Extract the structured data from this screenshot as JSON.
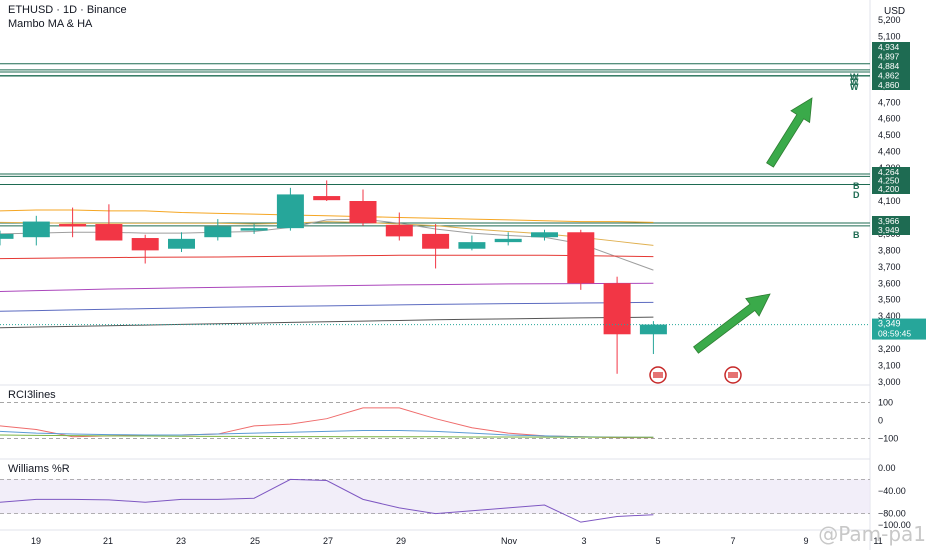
{
  "header": {
    "symbol_line": "ETHUSD · 1D · Binance",
    "indicator": "Mambo MA & HA"
  },
  "currency": "USD",
  "watermark": "@Pam-pa1",
  "colors": {
    "up": "#26a69a",
    "up_fill": "#26a69a",
    "down": "#f23645",
    "level_line": "#1e6b52",
    "arrow": "#3aaa4a",
    "ma_orange": "#f5a623",
    "ma_gold": "#e0b050",
    "ma_red": "#e53935",
    "ma_purple": "#ab47bc",
    "ma_blue": "#5c6bc0",
    "ma_dark": "#555555",
    "ma_grey": "#9e9e9e"
  },
  "price_axis": {
    "ticks": [
      "5,200",
      "5,100",
      "4,800",
      "4,700",
      "4,600",
      "4,500",
      "4,400",
      "4,300",
      "4,200",
      "4,100",
      "3,900",
      "3,800",
      "3,700",
      "3,600",
      "3,500",
      "3,400",
      "3,300",
      "3,200",
      "3,100",
      "3,000"
    ],
    "labels_top": [
      "4,934",
      "4,897",
      "4,884",
      "4,862",
      "4,860"
    ],
    "labels_mid": [
      "4,264",
      "4,250",
      "4,200"
    ],
    "labels_low": [
      "3,966",
      "3,949"
    ],
    "last_price": "3,349",
    "countdown": "08:59:45"
  },
  "level_markers": {
    "top": [
      "W",
      "W",
      "W"
    ],
    "mid": [
      "B",
      "D"
    ],
    "low": [
      "B"
    ]
  },
  "time_axis": [
    "19",
    "21",
    "23",
    "25",
    "27",
    "29",
    "Nov",
    "3",
    "5",
    "7",
    "9",
    "11"
  ],
  "chart_data": [
    {
      "type": "candlestick",
      "title": "ETHUSD · 1D · Binance",
      "ylim": [
        3000,
        5250
      ],
      "candles": [
        {
          "o": 3870,
          "h": 3920,
          "l": 3830,
          "c": 3900
        },
        {
          "o": 3880,
          "h": 4010,
          "l": 3830,
          "c": 3975
        },
        {
          "o": 3960,
          "h": 4060,
          "l": 3880,
          "c": 3945
        },
        {
          "o": 3960,
          "h": 4080,
          "l": 3860,
          "c": 3860
        },
        {
          "o": 3875,
          "h": 3895,
          "l": 3720,
          "c": 3800
        },
        {
          "o": 3810,
          "h": 3910,
          "l": 3790,
          "c": 3870
        },
        {
          "o": 3880,
          "h": 3990,
          "l": 3860,
          "c": 3945
        },
        {
          "o": 3920,
          "h": 3960,
          "l": 3900,
          "c": 3935
        },
        {
          "o": 3935,
          "h": 4180,
          "l": 3920,
          "c": 4140
        },
        {
          "o": 4130,
          "h": 4225,
          "l": 4100,
          "c": 4105
        },
        {
          "o": 4100,
          "h": 4170,
          "l": 3950,
          "c": 3965
        },
        {
          "o": 3955,
          "h": 4030,
          "l": 3860,
          "c": 3885
        },
        {
          "o": 3900,
          "h": 3960,
          "l": 3690,
          "c": 3810
        },
        {
          "o": 3810,
          "h": 3890,
          "l": 3800,
          "c": 3850
        },
        {
          "o": 3850,
          "h": 3910,
          "l": 3830,
          "c": 3870
        },
        {
          "o": 3880,
          "h": 3925,
          "l": 3860,
          "c": 3910
        },
        {
          "o": 3910,
          "h": 3925,
          "l": 3560,
          "c": 3600
        },
        {
          "o": 3600,
          "h": 3640,
          "l": 3050,
          "c": 3290
        },
        {
          "o": 3290,
          "h": 3370,
          "l": 3170,
          "c": 3349
        }
      ],
      "moving_averages": [
        {
          "color": "ma_orange",
          "values": [
            4040,
            4045,
            4045,
            4040,
            4040,
            4030,
            4025,
            4020,
            4015,
            4010,
            4005,
            4000,
            3995,
            3990,
            3985,
            3980,
            3975,
            3975,
            3970
          ]
        },
        {
          "color": "ma_gold",
          "values": [
            3970,
            3968,
            3965,
            3965,
            3965,
            3965,
            3965,
            3960,
            3965,
            3975,
            3970,
            3960,
            3950,
            3930,
            3915,
            3900,
            3880,
            3855,
            3830
          ]
        },
        {
          "color": "ma_grey",
          "values": [
            3900,
            3905,
            3910,
            3910,
            3905,
            3905,
            3910,
            3915,
            3940,
            3985,
            3990,
            3965,
            3930,
            3905,
            3890,
            3880,
            3840,
            3760,
            3680
          ]
        },
        {
          "color": "ma_red",
          "values": [
            3750,
            3752,
            3754,
            3756,
            3758,
            3759,
            3760,
            3762,
            3764,
            3766,
            3768,
            3770,
            3770,
            3770,
            3770,
            3770,
            3768,
            3765,
            3762
          ]
        },
        {
          "color": "ma_purple",
          "values": [
            3550,
            3555,
            3560,
            3565,
            3568,
            3572,
            3575,
            3578,
            3581,
            3584,
            3587,
            3590,
            3592,
            3594,
            3596,
            3597,
            3598,
            3599,
            3600
          ]
        },
        {
          "color": "ma_blue",
          "values": [
            3430,
            3434,
            3438,
            3442,
            3446,
            3450,
            3454,
            3457,
            3460,
            3463,
            3466,
            3469,
            3472,
            3474,
            3476,
            3478,
            3480,
            3482,
            3484
          ]
        },
        {
          "color": "ma_dark",
          "values": [
            3330,
            3334,
            3338,
            3342,
            3346,
            3350,
            3354,
            3358,
            3362,
            3366,
            3370,
            3374,
            3378,
            3381,
            3384,
            3387,
            3390,
            3392,
            3394
          ]
        }
      ]
    },
    {
      "type": "line",
      "title": "RCI3lines",
      "ylim": [
        -130,
        130
      ],
      "y_ticks": [
        "100",
        "0",
        "−100"
      ],
      "series": [
        {
          "color": "#ef6c6c",
          "values": [
            -30,
            -50,
            -90,
            -85,
            -80,
            -80,
            -75,
            -30,
            -20,
            10,
            70,
            70,
            10,
            -40,
            -70,
            -85,
            -90,
            -95,
            -95
          ]
        },
        {
          "color": "#5b9bd5",
          "values": [
            -60,
            -70,
            -75,
            -78,
            -80,
            -80,
            -75,
            -70,
            -65,
            -60,
            -55,
            -55,
            -60,
            -70,
            -80,
            -85,
            -90,
            -92,
            -93
          ]
        },
        {
          "color": "#7cb342",
          "values": [
            -80,
            -82,
            -84,
            -85,
            -86,
            -87,
            -88,
            -88,
            -89,
            -89,
            -90,
            -90,
            -90,
            -91,
            -91,
            -92,
            -92,
            -93,
            -93
          ]
        }
      ]
    },
    {
      "type": "line",
      "title": "Williams %R",
      "ylim": [
        -100,
        0
      ],
      "y_ticks": [
        "0.00",
        "−40.00",
        "−80.00",
        "−100.00"
      ],
      "series": [
        {
          "color": "#7e57c2",
          "values": [
            -60,
            -55,
            -55,
            -56,
            -60,
            -55,
            -55,
            -53,
            -20,
            -22,
            -55,
            -70,
            -80,
            -75,
            -70,
            -65,
            -95,
            -85,
            -82
          ]
        }
      ]
    }
  ]
}
